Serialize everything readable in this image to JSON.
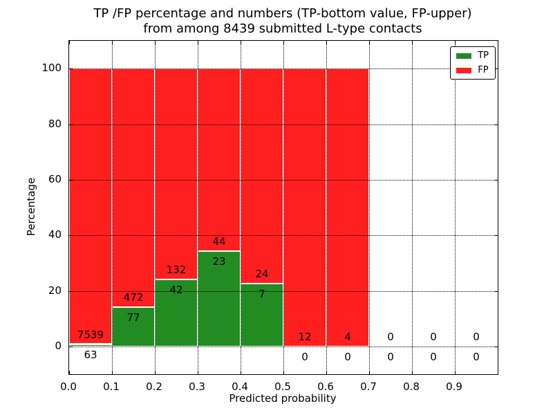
{
  "figure": {
    "title_line1": "TP /FP percentage and numbers (TP-bottom value, FP-upper)",
    "title_line2": "from among 8439 submitted L-type contacts",
    "xlabel": "Predicted probability",
    "ylabel": "Percentage"
  },
  "legend": {
    "entries": [
      {
        "label": "TP",
        "color": "#228b22"
      },
      {
        "label": "FP",
        "color": "#ff1f1f"
      }
    ]
  },
  "chart_data": {
    "type": "bar",
    "subtype": "stacked-percentage-histogram",
    "title": "TP /FP percentage and numbers (TP-bottom value, FP-upper) from among 8439 submitted L-type contacts",
    "xlabel": "Predicted probability",
    "ylabel": "Percentage",
    "total_submitted": 8439,
    "bin_width": 0.1,
    "bin_starts": [
      0.0,
      0.1,
      0.2,
      0.3,
      0.4,
      0.5,
      0.6,
      0.7,
      0.8,
      0.9
    ],
    "x_tick_labels": [
      "0.0",
      "0.1",
      "0.2",
      "0.3",
      "0.4",
      "0.5",
      "0.6",
      "0.7",
      "0.8",
      "0.9"
    ],
    "y_ticks": [
      0,
      20,
      40,
      60,
      80,
      100
    ],
    "y_tick_labels": [
      "0",
      "20",
      "40",
      "60",
      "80",
      "100"
    ],
    "xlim": [
      0,
      1
    ],
    "ylim": [
      -10,
      110
    ],
    "grid": "dotted",
    "axisbelow": false,
    "legend_position": "upper right",
    "series": [
      {
        "name": "TP",
        "color": "#228b22",
        "counts": [
          63,
          77,
          42,
          23,
          7,
          0,
          0,
          0,
          0,
          0
        ]
      },
      {
        "name": "FP",
        "color": "#ff1f1f",
        "counts": [
          7539,
          472,
          132,
          44,
          24,
          12,
          4,
          0,
          0,
          0
        ]
      }
    ],
    "tp_percent_of_bin": [
      0.83,
      14.03,
      24.14,
      34.33,
      22.58,
      0,
      0,
      null,
      null,
      null
    ],
    "bar_value_labels": {
      "fp_upper": [
        "7539",
        "472",
        "132",
        "44",
        "24",
        "12",
        "4",
        "0",
        "0",
        "0"
      ],
      "tp_bottom": [
        "63",
        "77",
        "42",
        "23",
        "7",
        "0",
        "0",
        "0",
        "0",
        "0"
      ]
    }
  }
}
